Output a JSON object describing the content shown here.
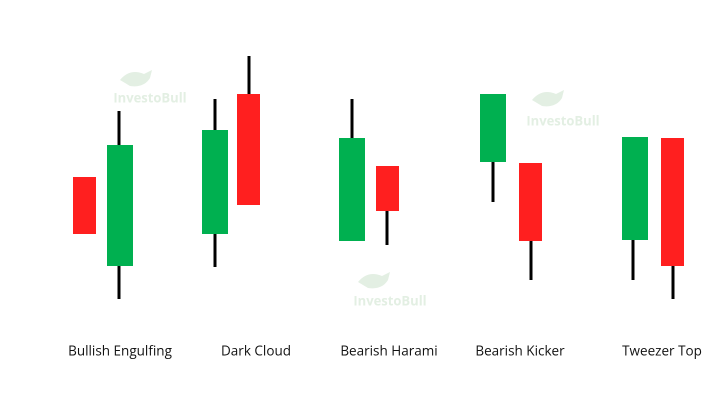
{
  "watermarks": [
    "InvestoBull",
    "InvestoBull",
    "InvestoBull"
  ],
  "patterns": [
    "Bullish Engulfing",
    "Dark Cloud",
    "Bearish Harami",
    "Bearish Kicker",
    "Tweezer Top"
  ]
}
